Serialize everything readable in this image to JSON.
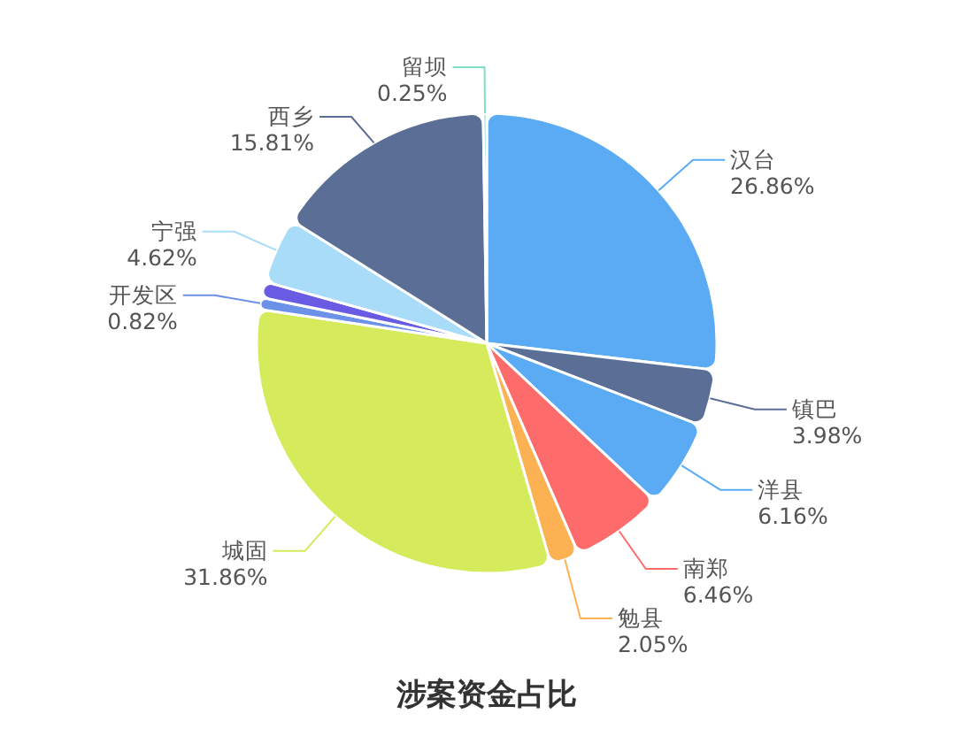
{
  "chart_data": {
    "type": "pie",
    "title": "涉案资金占比",
    "categories": [
      "汉台",
      "镇巴",
      "洋县",
      "南郑",
      "勉县",
      "城固",
      "开发区",
      null,
      "宁强",
      "西乡",
      "留坝"
    ],
    "values": [
      26.86,
      3.98,
      6.16,
      6.46,
      2.05,
      31.86,
      0.82,
      1.13,
      4.62,
      15.81,
      0.25
    ],
    "value_labels": [
      "26.86%",
      "3.98%",
      "6.16%",
      "6.46%",
      "2.05%",
      "31.86%",
      "0.82%",
      null,
      "4.62%",
      "15.81%",
      "0.25%"
    ],
    "colors": [
      "#5aabf4",
      "#5b6e96",
      "#5aabf4",
      "#fd6b6b",
      "#fcb152",
      "#d5eb5b",
      "#6c91e8",
      "#6a5be4",
      "#a9dcf8",
      "#5b6e96",
      "#7ddfc3"
    ]
  }
}
